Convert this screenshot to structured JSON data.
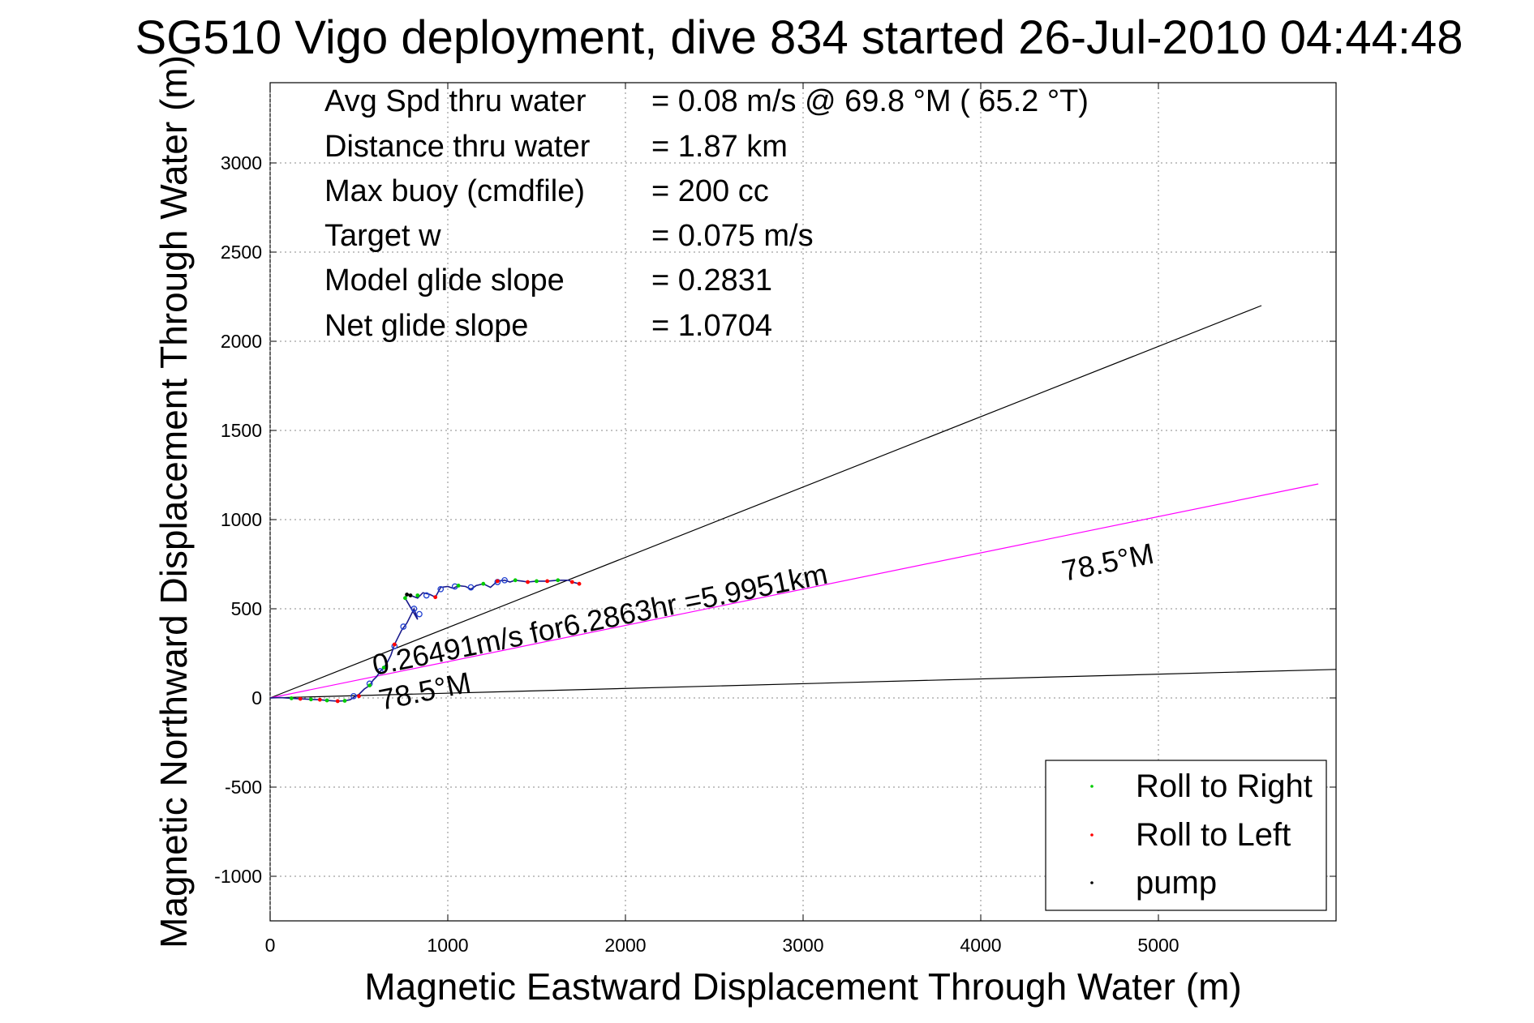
{
  "chart_data": {
    "type": "line",
    "title": "SG510 Vigo deployment, dive 834 started 26-Jul-2010 04:44:48",
    "xlabel": "Magnetic Eastward Displacement Through Water (m)",
    "ylabel": "Magnetic Northward Displacement Through Water (m)",
    "xlim": [
      0,
      6000
    ],
    "ylim": [
      -1250,
      3450
    ],
    "xticks": [
      0,
      1000,
      2000,
      3000,
      4000,
      5000
    ],
    "yticks": [
      -1000,
      -500,
      0,
      500,
      1000,
      1500,
      2000,
      2500,
      3000
    ],
    "grid": true,
    "info_lines": [
      {
        "label": "Avg Spd thru water",
        "value": "=  0.08 m/s @  69.8 °M ( 65.2 °T)"
      },
      {
        "label": "Distance thru water",
        "value": "=  1.87 km"
      },
      {
        "label": "Max buoy (cmdfile)",
        "value": "= 200 cc"
      },
      {
        "label": "Target w",
        "value": "= 0.075 m/s"
      },
      {
        "label": "Model glide slope",
        "value": "= 0.2831"
      },
      {
        "label": "Net glide slope",
        "value": "= 1.0704"
      }
    ],
    "annotations": {
      "current_label": "0.26491m/s for6.2863hr =5.9951km",
      "heading_label_far": "78.5°M",
      "heading_label_near": "78.5°M"
    },
    "series": [
      {
        "name": "Roll to Right",
        "color": "#00cc00",
        "marker": "point",
        "values": [
          [
            120,
            -2
          ],
          [
            230,
            -8
          ],
          [
            320,
            -14
          ],
          [
            420,
            -16
          ],
          [
            560,
            70
          ],
          [
            640,
            170
          ],
          [
            760,
            560
          ],
          [
            830,
            575
          ],
          [
            1060,
            630
          ],
          [
            1200,
            640
          ],
          [
            1380,
            660
          ],
          [
            1500,
            655
          ],
          [
            1620,
            660
          ]
        ]
      },
      {
        "name": "Roll to Left",
        "color": "#ff0000",
        "marker": "point",
        "values": [
          [
            170,
            -5
          ],
          [
            280,
            -10
          ],
          [
            380,
            -18
          ],
          [
            500,
            10
          ],
          [
            700,
            300
          ],
          [
            930,
            565
          ],
          [
            1280,
            655
          ],
          [
            1450,
            650
          ],
          [
            1560,
            655
          ],
          [
            1700,
            650
          ],
          [
            1740,
            640
          ]
        ]
      },
      {
        "name": "pump",
        "color": "#000000",
        "marker": "point",
        "values": [
          [
            770,
            580
          ],
          [
            790,
            575
          ]
        ]
      }
    ],
    "track": [
      [
        0,
        0
      ],
      [
        60,
        2
      ],
      [
        120,
        -2
      ],
      [
        170,
        -5
      ],
      [
        230,
        -8
      ],
      [
        280,
        -10
      ],
      [
        320,
        -14
      ],
      [
        380,
        -18
      ],
      [
        420,
        -16
      ],
      [
        450,
        -10
      ],
      [
        480,
        10
      ],
      [
        500,
        20
      ],
      [
        530,
        50
      ],
      [
        560,
        70
      ],
      [
        580,
        100
      ],
      [
        600,
        120
      ],
      [
        620,
        150
      ],
      [
        640,
        170
      ],
      [
        660,
        200
      ],
      [
        680,
        240
      ],
      [
        700,
        300
      ],
      [
        720,
        340
      ],
      [
        740,
        380
      ],
      [
        770,
        420
      ],
      [
        790,
        460
      ],
      [
        810,
        500
      ],
      [
        830,
        440
      ],
      [
        760,
        560
      ],
      [
        770,
        580
      ],
      [
        790,
        575
      ],
      [
        830,
        560
      ],
      [
        860,
        590
      ],
      [
        900,
        580
      ],
      [
        930,
        565
      ],
      [
        960,
        620
      ],
      [
        1000,
        625
      ],
      [
        1030,
        615
      ],
      [
        1060,
        630
      ],
      [
        1100,
        625
      ],
      [
        1130,
        610
      ],
      [
        1160,
        630
      ],
      [
        1200,
        640
      ],
      [
        1240,
        620
      ],
      [
        1280,
        655
      ],
      [
        1320,
        660
      ],
      [
        1350,
        650
      ],
      [
        1380,
        660
      ],
      [
        1420,
        655
      ],
      [
        1450,
        650
      ],
      [
        1500,
        655
      ],
      [
        1560,
        655
      ],
      [
        1620,
        660
      ],
      [
        1680,
        660
      ],
      [
        1700,
        650
      ],
      [
        1740,
        640
      ]
    ],
    "circle_markers": [
      [
        470,
        10
      ],
      [
        560,
        80
      ],
      [
        620,
        150
      ],
      [
        700,
        290
      ],
      [
        750,
        400
      ],
      [
        810,
        500
      ],
      [
        840,
        470
      ],
      [
        880,
        575
      ],
      [
        960,
        610
      ],
      [
        1040,
        625
      ],
      [
        1130,
        620
      ],
      [
        1280,
        650
      ],
      [
        1320,
        660
      ]
    ],
    "lines": [
      {
        "name": "upper-black-line",
        "color": "#000000",
        "from": [
          0,
          0
        ],
        "to": [
          5580,
          2200
        ]
      },
      {
        "name": "magenta-heading-line",
        "color": "#ff00ff",
        "from": [
          0,
          0
        ],
        "to": [
          5900,
          1200
        ]
      },
      {
        "name": "lower-black-line",
        "color": "#000000",
        "from": [
          0,
          0
        ],
        "to": [
          6000,
          160
        ]
      }
    ],
    "legend": {
      "position": "bottom-right",
      "entries": [
        "Roll to Right",
        "Roll to Left",
        "pump"
      ]
    }
  }
}
